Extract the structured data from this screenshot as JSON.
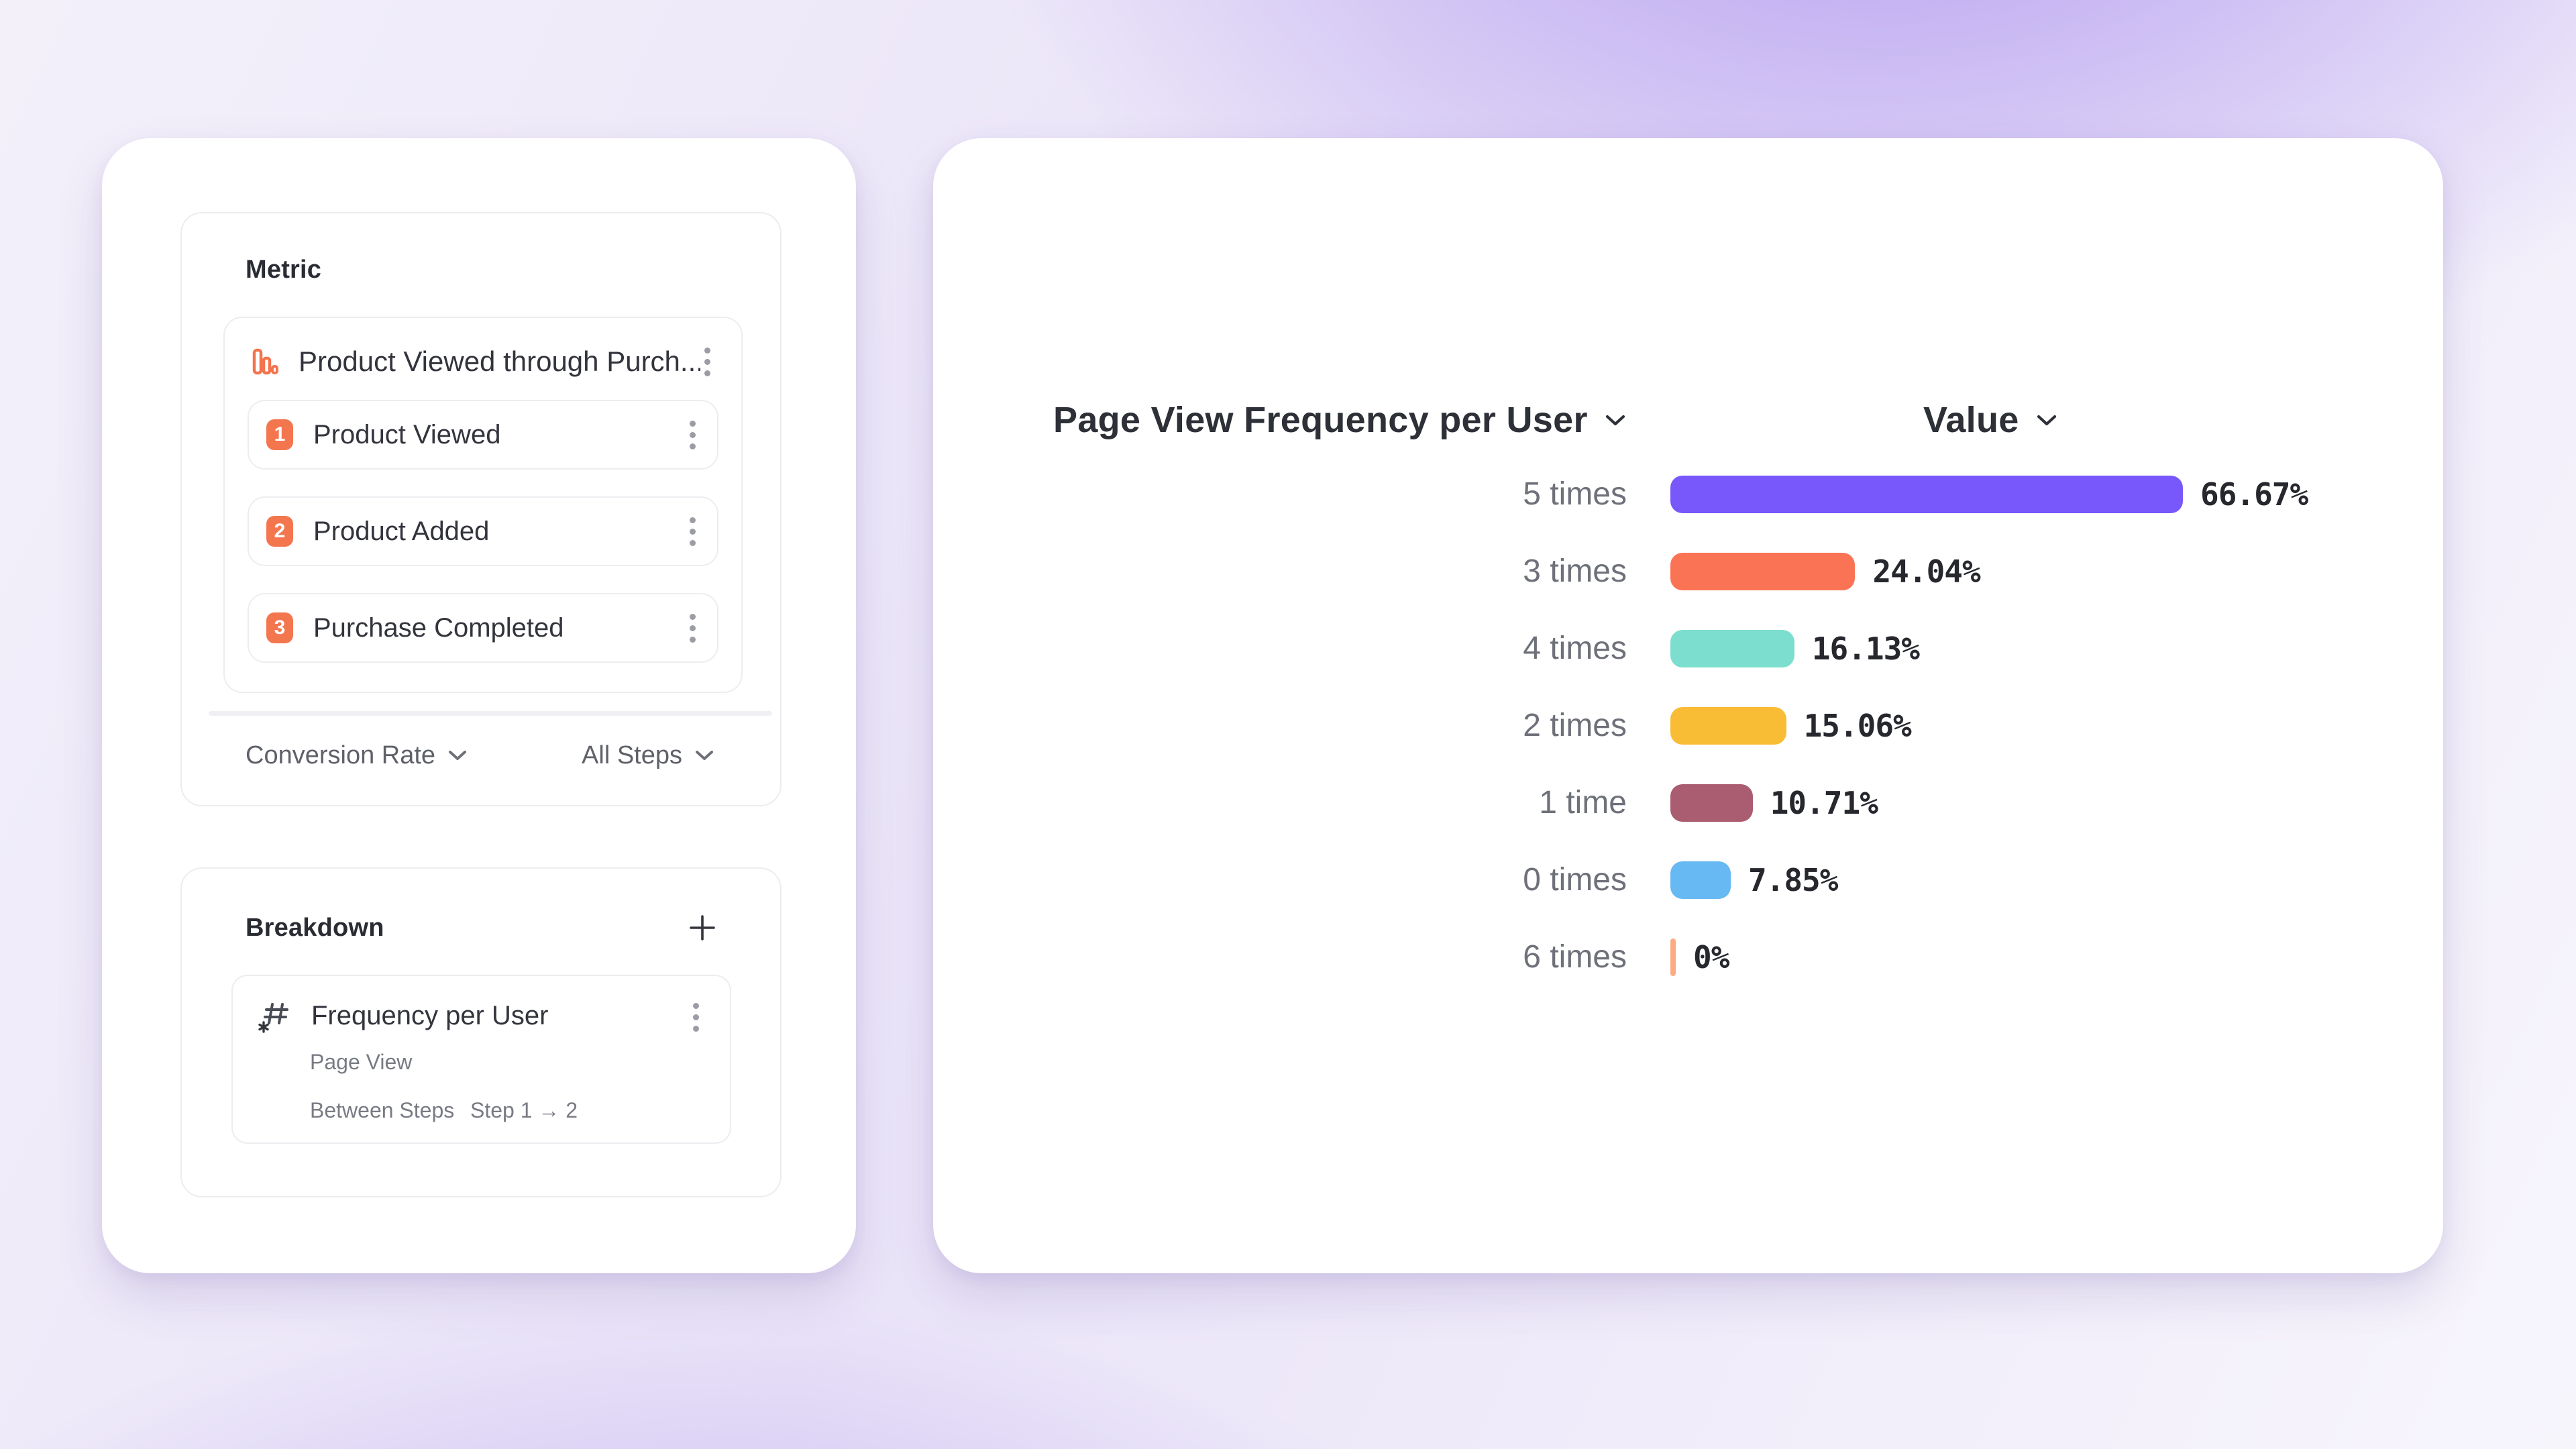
{
  "colors": {
    "accent_orange": "#F4764F",
    "card_border": "#ECECF1",
    "text_dark": "#2E3038",
    "text_gray": "#6E7179"
  },
  "metric_panel": {
    "title": "Metric",
    "funnel": {
      "icon": "funnel-bars-icon",
      "title": "Product Viewed through Purch...",
      "steps": [
        {
          "number": "1",
          "label": "Product Viewed"
        },
        {
          "number": "2",
          "label": "Product Added"
        },
        {
          "number": "3",
          "label": "Purchase Completed"
        }
      ]
    },
    "footer": {
      "left_dropdown": "Conversion Rate",
      "right_dropdown": "All Steps"
    }
  },
  "breakdown_panel": {
    "title": "Breakdown",
    "item": {
      "icon": "numeric-property-icon",
      "title": "Frequency per User",
      "event": "Page View",
      "scope_label": "Between Steps",
      "scope_value": "Step 1 → 2"
    }
  },
  "chart_data": {
    "type": "bar",
    "orientation": "horizontal",
    "title": "Page View Frequency per User",
    "value_header": "Value",
    "categories": [
      "5 times",
      "3 times",
      "4 times",
      "2 times",
      "1 time",
      "0 times",
      "6 times"
    ],
    "values": [
      66.67,
      24.04,
      16.13,
      15.06,
      10.71,
      7.85,
      0
    ],
    "labels": [
      "66.67%",
      "24.04%",
      "16.13%",
      "15.06%",
      "10.71%",
      "7.85%",
      "0%"
    ],
    "colors": [
      "#7857FB",
      "#FB7355",
      "#7CDECE",
      "#F9BC35",
      "#AA5C70",
      "#66B9F2",
      "#FBAC85"
    ],
    "xlim": [
      0,
      66.67
    ],
    "grid": false,
    "legend": "none"
  }
}
